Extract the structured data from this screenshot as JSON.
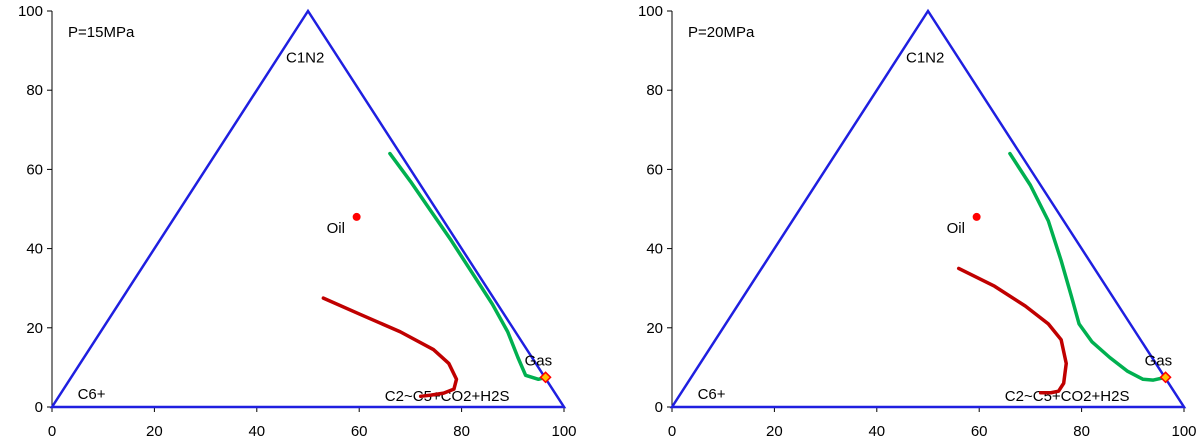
{
  "chart_data": [
    {
      "type": "ternary",
      "pressure_label": "P=15MPa",
      "vertex_labels": {
        "top": "C1N2",
        "left": "C6+",
        "right": "C2~C5+CO2+H2S"
      },
      "xlim": [
        0,
        100
      ],
      "ylim": [
        0,
        100
      ],
      "x_ticks": [
        "0",
        "20",
        "40",
        "60",
        "80",
        "100"
      ],
      "y_ticks": [
        "0",
        "20",
        "40",
        "60",
        "80",
        "100"
      ],
      "points": [
        {
          "name": "Oil",
          "x": 59.5,
          "y": 48,
          "color": "#ff0000"
        },
        {
          "name": "Gas",
          "x": 96.4,
          "y": 7.5,
          "color": "#ffc000",
          "edge": "#ff0000"
        }
      ],
      "series": [
        {
          "color": "#c00000",
          "x": [
            53,
            60,
            68,
            74.5,
            77.5,
            79,
            78.5,
            76.5,
            74,
            72
          ],
          "y": [
            27.5,
            23.5,
            19,
            14.5,
            11,
            7,
            4.5,
            3.5,
            3,
            2.7
          ]
        },
        {
          "color": "#00b050",
          "x": [
            66,
            70,
            74,
            78,
            82,
            86,
            89,
            91,
            92.5,
            95,
            96.4
          ],
          "y": [
            64,
            57,
            49.5,
            42,
            34,
            26,
            19,
            12.5,
            8,
            7,
            7.5
          ]
        }
      ]
    },
    {
      "type": "ternary",
      "pressure_label": "P=20MPa",
      "vertex_labels": {
        "top": "C1N2",
        "left": "C6+",
        "right": "C2~C5+CO2+H2S"
      },
      "xlim": [
        0,
        100
      ],
      "ylim": [
        0,
        100
      ],
      "x_ticks": [
        "0",
        "20",
        "40",
        "60",
        "80",
        "100"
      ],
      "y_ticks": [
        "0",
        "20",
        "40",
        "60",
        "80",
        "100"
      ],
      "points": [
        {
          "name": "Oil",
          "x": 59.5,
          "y": 48,
          "color": "#ff0000"
        },
        {
          "name": "Gas",
          "x": 96.4,
          "y": 7.5,
          "color": "#ffc000",
          "edge": "#ff0000"
        }
      ],
      "series": [
        {
          "color": "#c00000",
          "x": [
            56,
            63,
            69,
            73.5,
            76,
            77,
            76.5,
            75.5,
            74,
            72
          ],
          "y": [
            35,
            30.5,
            25.5,
            21,
            17,
            11,
            6,
            4,
            3.6,
            3.6
          ]
        },
        {
          "color": "#00b050",
          "x": [
            66,
            70,
            73.5,
            76,
            78,
            79.5,
            82,
            85.5,
            89,
            92,
            94,
            96.4
          ],
          "y": [
            64,
            56,
            47,
            37,
            28,
            21,
            16.5,
            12.5,
            9,
            7,
            6.8,
            7.5
          ]
        }
      ]
    }
  ]
}
